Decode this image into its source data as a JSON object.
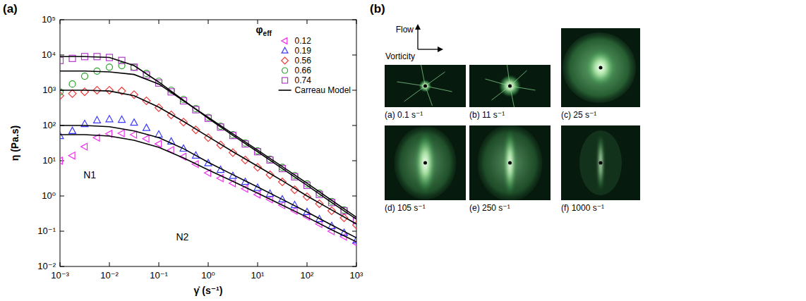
{
  "chart_data": {
    "type": "scatter",
    "panel_label": "(a)",
    "x_label": "γ̇ (s⁻¹)",
    "y_label": "η (Pa.s)",
    "log": true,
    "xlim": [
      0.001,
      1000
    ],
    "ylim": [
      0.01,
      100000
    ],
    "xticks": [
      {
        "value": 0.001,
        "label": "10⁻³"
      },
      {
        "value": 0.01,
        "label": "10⁻²"
      },
      {
        "value": 0.1,
        "label": "10⁻¹"
      },
      {
        "value": 1,
        "label": "10⁰"
      },
      {
        "value": 10,
        "label": "10¹"
      },
      {
        "value": 100,
        "label": "10²"
      },
      {
        "value": 1000,
        "label": "10³"
      }
    ],
    "yticks": [
      {
        "value": 0.01,
        "label": "10⁻²"
      },
      {
        "value": 0.1,
        "label": "10⁻¹"
      },
      {
        "value": 1,
        "label": "10⁰"
      },
      {
        "value": 10,
        "label": "10¹"
      },
      {
        "value": 100,
        "label": "10²"
      },
      {
        "value": 1000,
        "label": "10³"
      },
      {
        "value": 10000,
        "label": "10⁴"
      },
      {
        "value": 100000,
        "label": "10⁵"
      }
    ],
    "legend": "top-right",
    "legend_title": {
      "symbol": "φ",
      "subscript": "eff"
    },
    "x": [
      0.001,
      0.00178,
      0.00316,
      0.00562,
      0.01,
      0.0178,
      0.0316,
      0.0562,
      0.1,
      0.178,
      0.316,
      0.562,
      1,
      1.78,
      3.16,
      5.62,
      10,
      17.8,
      31.6,
      56.2,
      100,
      178,
      316,
      562,
      1000
    ],
    "series": [
      {
        "name": "0.12",
        "color": "#f030f0",
        "marker": "triangle-left",
        "values": [
          10,
          14,
          25,
          45,
          58,
          60,
          55,
          42,
          30,
          20,
          13,
          8,
          4.5,
          3.2,
          2.3,
          1.6,
          1.1,
          0.8,
          0.55,
          0.38,
          0.26,
          0.16,
          0.1,
          0.07,
          0.045
        ]
      },
      {
        "name": "0.19",
        "color": "#3a3aff",
        "marker": "triangle-up",
        "values": [
          50,
          70,
          110,
          140,
          150,
          145,
          120,
          85,
          55,
          35,
          22,
          14,
          8.5,
          5.5,
          3.7,
          2.5,
          1.7,
          1.15,
          0.8,
          0.55,
          0.35,
          0.22,
          0.14,
          0.09,
          0.055
        ]
      },
      {
        "name": "0.56",
        "color": "#f03a3a",
        "marker": "diamond",
        "values": [
          700,
          800,
          900,
          1000,
          1000,
          950,
          750,
          500,
          320,
          200,
          125,
          75,
          45,
          28,
          17,
          10.5,
          6.5,
          4,
          2.5,
          1.5,
          0.95,
          0.6,
          0.38,
          0.24,
          0.15
        ]
      },
      {
        "name": "0.66",
        "color": "#2aa02a",
        "marker": "circle",
        "values": [
          900,
          1500,
          2500,
          3500,
          4500,
          5000,
          4500,
          3000,
          1800,
          1000,
          550,
          300,
          170,
          95,
          55,
          32,
          19,
          11,
          6.5,
          3.8,
          2.2,
          1.2,
          0.7,
          0.4,
          0.2
        ]
      },
      {
        "name": "0.74",
        "color": "#b03cc8",
        "marker": "square",
        "values": [
          7000,
          8000,
          9000,
          9000,
          8500,
          7000,
          4500,
          2700,
          1600,
          900,
          500,
          280,
          160,
          90,
          52,
          30,
          18,
          10.5,
          6,
          3.5,
          2,
          1.1,
          0.65,
          0.38,
          0.2
        ]
      },
      {
        "name": "Carreau Model",
        "type": "line",
        "color": "#000000",
        "line_style": "solid",
        "x": [
          0.001,
          0.00316,
          0.01,
          0.0316,
          0.1,
          0.316,
          1,
          3.16,
          10,
          31.6,
          100,
          316,
          1000,
          null,
          0.001,
          0.00316,
          0.01,
          0.0316,
          0.1,
          0.316,
          1,
          3.16,
          10,
          31.6,
          100,
          316,
          1000,
          null,
          0.001,
          0.00316,
          0.01,
          0.0316,
          0.1,
          0.316,
          1,
          3.16,
          10,
          31.6,
          100,
          316,
          1000,
          null,
          0.001,
          0.00316,
          0.01,
          0.0316,
          0.1,
          0.316,
          1,
          3.16,
          10,
          31.6,
          100,
          316,
          1000,
          null,
          0.001,
          0.00316,
          0.01,
          0.0316,
          0.1,
          0.316,
          1,
          3.16,
          10,
          31.6,
          100,
          316,
          1000
        ],
        "values": [
          55,
          55,
          50,
          38,
          24,
          12,
          5.5,
          2.6,
          1.2,
          0.55,
          0.25,
          0.11,
          0.05,
          null,
          100,
          100,
          92,
          70,
          45,
          22,
          9,
          4,
          1.8,
          0.8,
          0.35,
          0.15,
          0.065,
          null,
          1000,
          1000,
          950,
          700,
          330,
          130,
          48,
          18,
          7,
          2.7,
          1,
          0.4,
          0.16,
          null,
          3500,
          3500,
          3300,
          2800,
          1500,
          500,
          170,
          58,
          20,
          6.8,
          2.3,
          0.75,
          0.25,
          null,
          9000,
          9000,
          8500,
          5000,
          1700,
          520,
          160,
          52,
          18,
          6,
          2,
          0.65,
          0.22
        ]
      }
    ],
    "annotations": [
      {
        "text": "N1",
        "x": 0.004,
        "y": 4
      },
      {
        "text": "N2",
        "x": 0.3,
        "y": 0.07
      }
    ]
  },
  "panel_b": {
    "panel_label": "(b)",
    "flow_label": "Flow",
    "vorticity_label": "Vorticity",
    "images": [
      {
        "label": "(a) 0.1 s⁻¹"
      },
      {
        "label": "(b) 11 s⁻¹"
      },
      {
        "label": "(c) 25 s⁻¹"
      },
      {
        "label": "(d) 105 s⁻¹"
      },
      {
        "label": "(e) 250 s⁻¹"
      },
      {
        "label": "(f) 1000 s⁻¹"
      }
    ]
  }
}
